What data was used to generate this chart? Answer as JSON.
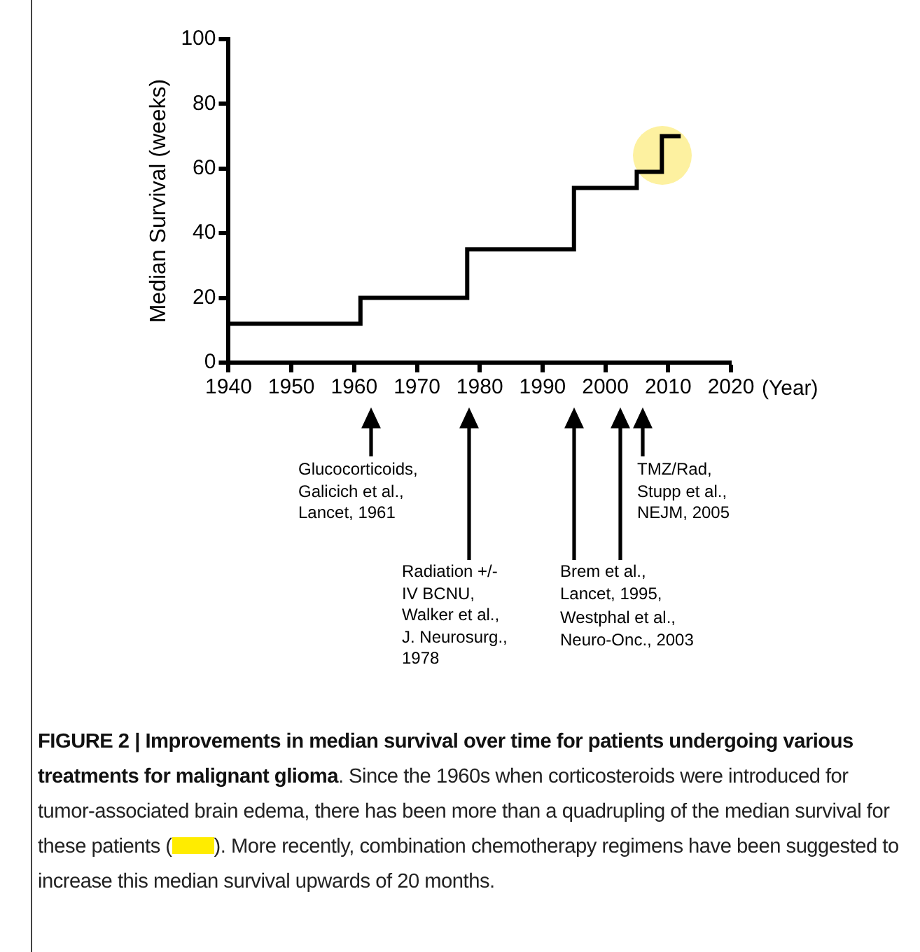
{
  "chart_data": {
    "type": "step",
    "title": "FIGURE 2 | Improvements in median survival over time for patients undergoing various treatments for malignant glioma",
    "ylabel": "Median Survival (weeks)",
    "xlabel": "(Year)",
    "x": [
      1940,
      1961,
      1978,
      1995,
      2005,
      2009,
      2012
    ],
    "series": [
      {
        "color": "#000000",
        "values": [
          12,
          20,
          35,
          54,
          59,
          70,
          70
        ]
      }
    ],
    "xlim": [
      1940,
      2020
    ],
    "xticks": [
      1940,
      1950,
      1960,
      1970,
      1980,
      1990,
      2000,
      2010,
      2020
    ],
    "ylim": [
      0,
      100
    ],
    "yticks": [
      0,
      20,
      40,
      60,
      80,
      100
    ],
    "grid": false,
    "legend": false,
    "marker": "none",
    "line_style": "solid",
    "annotations": [
      "Glucocorticoids,\nGalicich et al.,\nLancet, 1961",
      "Radiation +/-\nIV BCNU,\nWalker et al.,\nJ. Neurosurg.,\n1978",
      "Brem et al.,\nLancet, 1995,",
      "Westphal et al.,\nNeuro-Onc., 2003",
      "TMZ/Rad,\nStupp et al.,\nNEJM, 2005",
      ". Since the 1960s when corticosteroids were introduced for tumor-associated brain edema, there has been more than a quadrupling of the median survival for these patients (",
      "). More recently, combination chemotherapy regimens have been suggested to increase this median survival upwards of 20 months."
    ]
  }
}
